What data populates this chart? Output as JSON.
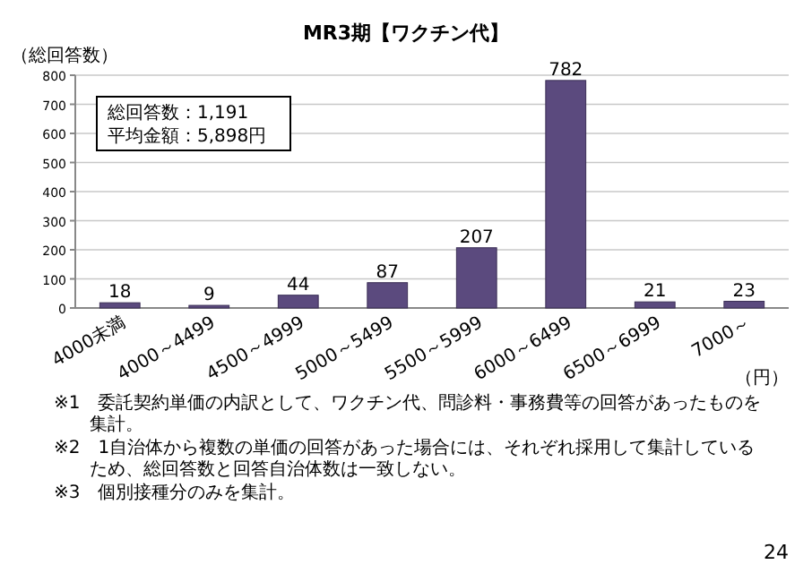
{
  "chart_data": {
    "type": "bar",
    "title": "MR3期【ワクチン代】",
    "ylabel": "（総回答数）",
    "xlabel": "（円）",
    "categories": [
      "4000未満",
      "4000～4499",
      "4500～4999",
      "5000～5499",
      "5500～5999",
      "6000～6499",
      "6500～6999",
      "7000～"
    ],
    "values": [
      18,
      9,
      44,
      87,
      207,
      782,
      21,
      23
    ],
    "color": "#5b4a7e",
    "ylim": [
      0,
      800
    ],
    "yticks": [
      0,
      100,
      200,
      300,
      400,
      500,
      600,
      700,
      800
    ],
    "grid": "y",
    "data_labels": true,
    "annotations": [
      "総回答数：1,191",
      "平均金額：5,898円",
      "※1　委託契約単価の内訳として、ワクチン代、問診料・事務費等の回答があったものを集計。",
      "※2　1自治体から複数の単価の回答があった場合には、それぞれ採用して集計しているため、総回答数と回答自治体数は一致しない。",
      "※3　個別接種分のみを集計。",
      "24"
    ]
  }
}
